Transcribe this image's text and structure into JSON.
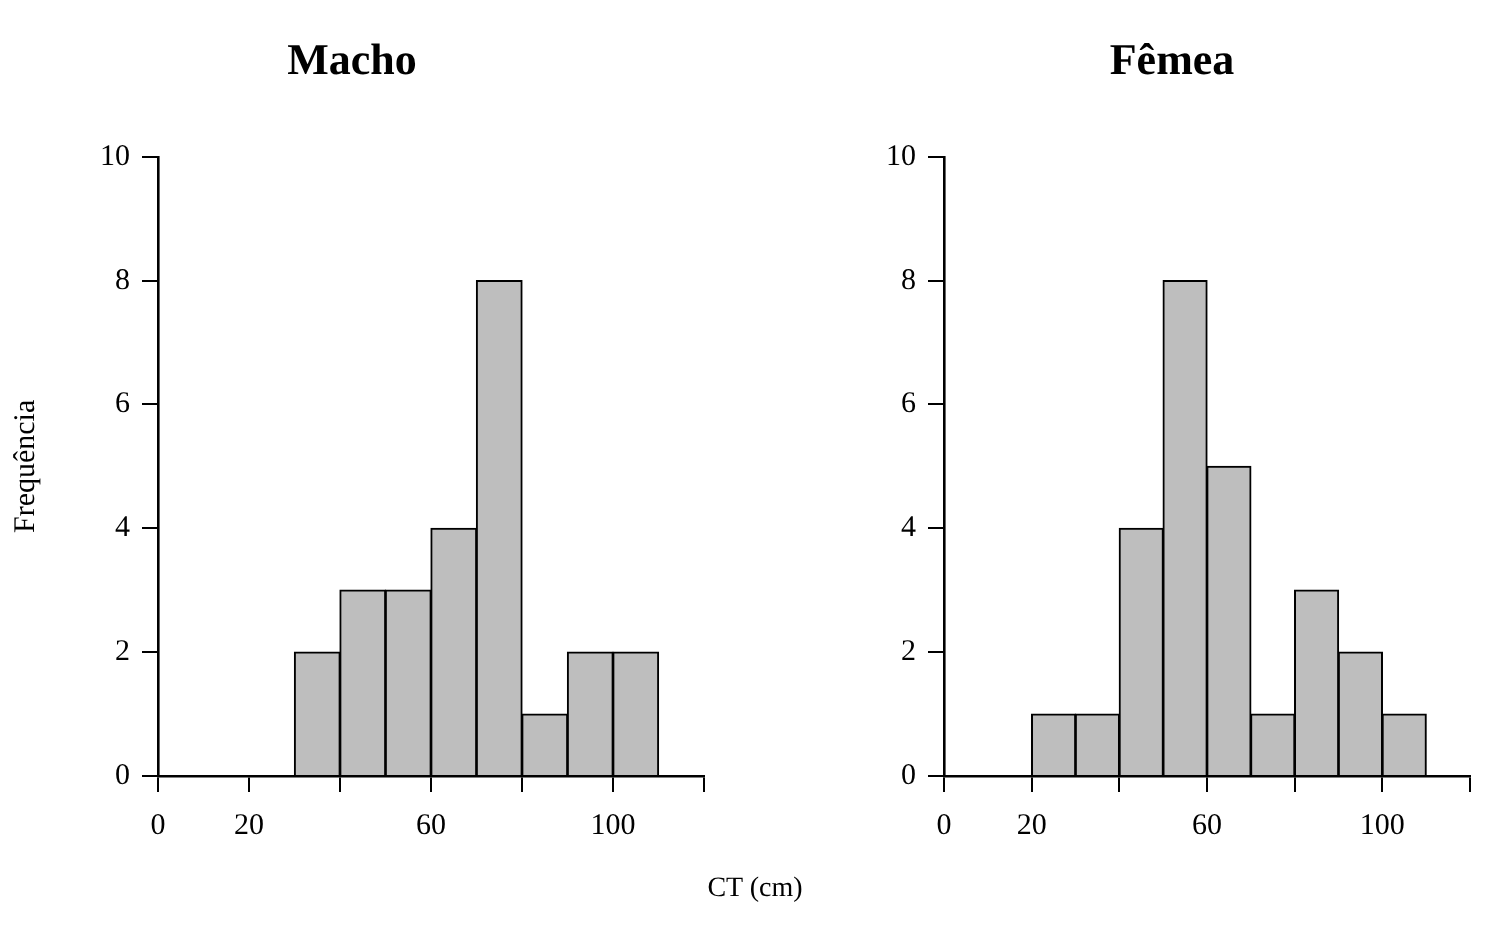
{
  "chart_data": [
    {
      "type": "histogram",
      "title": "Macho",
      "ylabel": "Frequência",
      "xlabel": "CT (cm)",
      "bins": [
        30,
        40,
        50,
        60,
        70,
        80,
        90,
        100,
        110
      ],
      "values": [
        2,
        3,
        3,
        4,
        8,
        1,
        2,
        2
      ],
      "color": "#bebebe",
      "xlim": [
        0,
        120
      ],
      "xticks": [
        0,
        20,
        {
          "value": 40,
          "label": null
        },
        60,
        {
          "value": 80,
          "label": null
        },
        100,
        {
          "value": 120,
          "label": null
        }
      ],
      "ylim": [
        0,
        10
      ],
      "yticks": [
        0,
        2,
        4,
        6,
        8,
        10
      ],
      "grid": false,
      "legend": false
    },
    {
      "type": "histogram",
      "title": "Fêmea",
      "bins": [
        20,
        30,
        40,
        50,
        60,
        70,
        80,
        90,
        100,
        110
      ],
      "values": [
        1,
        1,
        4,
        8,
        5,
        1,
        3,
        2,
        1
      ],
      "color": "#bebebe",
      "xlim": [
        0,
        120
      ],
      "xticks": [
        0,
        20,
        {
          "value": 40,
          "label": null
        },
        60,
        {
          "value": 80,
          "label": null
        },
        100,
        {
          "value": 120,
          "label": null
        }
      ],
      "ylim": [
        0,
        10
      ],
      "yticks": [
        0,
        2,
        4,
        6,
        8,
        10
      ],
      "grid": false,
      "legend": false
    }
  ]
}
